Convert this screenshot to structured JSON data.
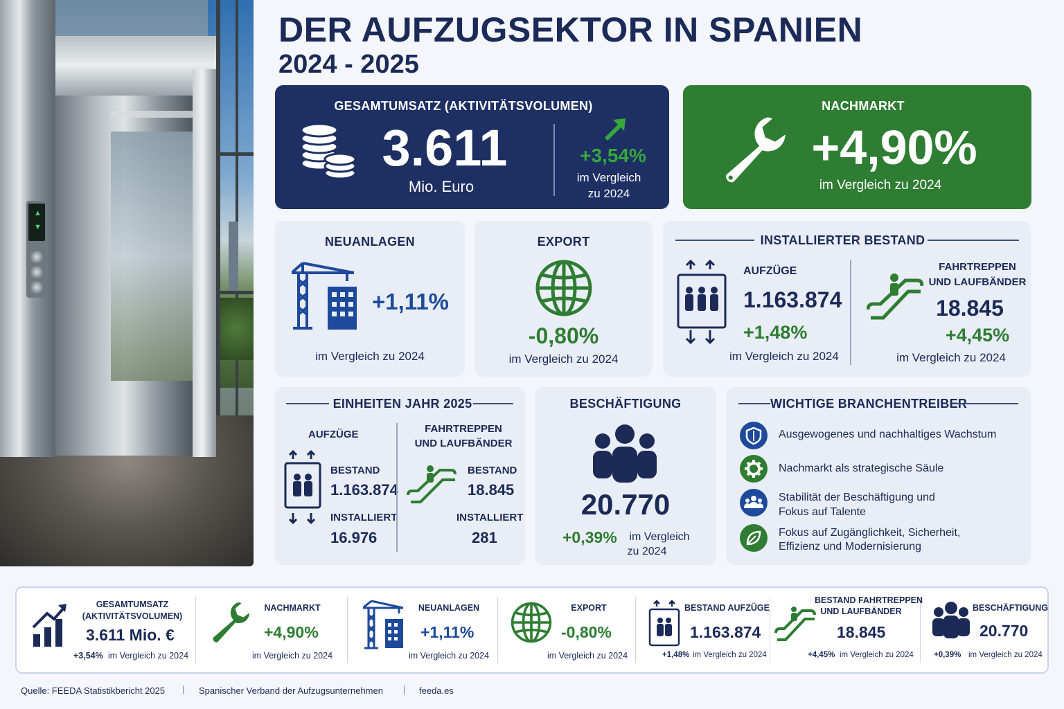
{
  "title": "DER AUFZUGSEKTOR IN SPANIEN",
  "subtitle": "2024 - 2025",
  "revenue": {
    "header": "GESAMTUMSATZ (AKTIVITÄTSVOLUMEN)",
    "value": "3.611",
    "unit": "Mio. Euro",
    "change": "+3,54%",
    "note_line1": "im Vergleich",
    "note_line2": "zu 2024",
    "icon": "coins-icon",
    "color": "#1d2f63"
  },
  "aftermarket": {
    "header": "NACHMARKT",
    "value": "+4,90%",
    "note": "im Vergleich zu 2024",
    "icon": "wrench-icon",
    "color": "#2e7d32"
  },
  "new_installations": {
    "header": "NEUANLAGEN",
    "value": "+1,11%",
    "note": "im Vergleich zu 2024",
    "icon": "crane-building-icon"
  },
  "export": {
    "header": "EXPORT",
    "value": "-0,80%",
    "note": "im Vergleich zu 2024",
    "icon": "globe-icon"
  },
  "installed_base": {
    "header": "INSTALLIERTER BESTAND",
    "elevators": {
      "label": "AUFZÜGE",
      "value": "1.163.874",
      "change": "+1,48%",
      "note": "im Vergleich zu 2024",
      "icon": "elevator-icon"
    },
    "escalators": {
      "label_line1": "FAHRTREPPEN",
      "label_line2": "UND LAUFBÄNDER",
      "value": "18.845",
      "change": "+4,45%",
      "note": "im Vergleich zu 2024",
      "icon": "escalator-icon"
    }
  },
  "units_2025": {
    "header": "EINHEITEN JAHR 2025",
    "elevators": {
      "label": "AUFZÜGE",
      "stock_label": "BESTAND",
      "stock_value": "1.163.874",
      "installed_label": "INSTALLIERT",
      "installed_value": "16.976"
    },
    "escalators": {
      "label_line1": "FAHRTREPPEN",
      "label_line2": "UND LAUFBÄNDER",
      "stock_label": "BESTAND",
      "stock_value": "18.845",
      "installed_label": "INSTALLIERT",
      "installed_value": "281"
    }
  },
  "employment": {
    "header": "BESCHÄFTIGUNG",
    "value": "20.770",
    "change": "+0,39%",
    "note_line1": "im Vergleich",
    "note_line2": "zu 2024",
    "icon": "people-group-icon"
  },
  "drivers": {
    "header": "WICHTIGE BRANCHENTREIBER",
    "items": [
      {
        "line1": "Ausgewogenes und nachhaltiges Wachstum",
        "line2": "",
        "icon": "shield-icon"
      },
      {
        "line1": "Nachmarkt als strategische Säule",
        "line2": "",
        "icon": "gear-icon"
      },
      {
        "line1": "Stabilität der Beschäftigung und",
        "line2": "Fokus auf Talente",
        "icon": "team-icon"
      },
      {
        "line1": "Fokus auf Zugänglichkeit, Sicherheit,",
        "line2": "Effizienz und Modernisierung",
        "icon": "leaf-icon"
      }
    ]
  },
  "summary": [
    {
      "label_line1": "GESAMTUMSATZ",
      "label_line2": "(AKTIVITÄTSVOLUMEN)",
      "value": "3.611 Mio. €",
      "change": "+3,54%",
      "note": "im Vergleich zu 2024",
      "icon": "rising-bars-icon"
    },
    {
      "label_line1": "NACHMARKT",
      "label_line2": "",
      "value": "+4,90%",
      "change": "",
      "note": "im Vergleich zu 2024",
      "icon": "wrench-icon"
    },
    {
      "label_line1": "NEUANLAGEN",
      "label_line2": "",
      "value": "+1,11%",
      "change": "",
      "note": "im Vergleich zu 2024",
      "icon": "crane-building-icon"
    },
    {
      "label_line1": "EXPORT",
      "label_line2": "",
      "value": "-0,80%",
      "change": "",
      "note": "im Vergleich zu 2024",
      "icon": "globe-icon"
    },
    {
      "label_line1": "BESTAND AUFZÜGE",
      "label_line2": "",
      "value": "1.163.874",
      "change": "+1,48%",
      "note": "im Vergleich zu 2024",
      "icon": "elevator-icon"
    },
    {
      "label_line1": "BESTAND FAHRTREPPEN",
      "label_line2": "UND LAUFBÄNDER",
      "value": "18.845",
      "change": "+4,45%",
      "note": "im Vergleich zu 2024",
      "icon": "escalator-icon"
    },
    {
      "label_line1": "BESCHÄFTIGUNG",
      "label_line2": "",
      "value": "20.770",
      "change": "+0,39%",
      "note": "im Vergleich zu 2024",
      "icon": "people-group-icon"
    }
  ],
  "footer": {
    "source": "Quelle: FEEDA Statistikbericht 2025",
    "org": "Spanischer Verband der Aufzugsunternehmen",
    "site": "feeda.es",
    "separator": "|"
  }
}
